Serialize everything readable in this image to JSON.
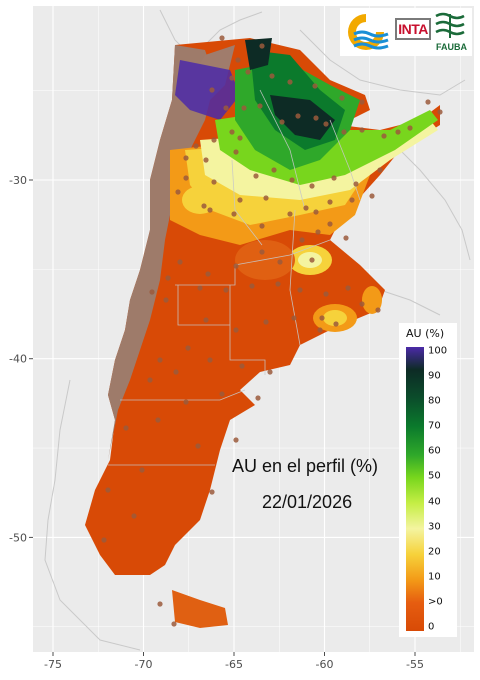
{
  "map": {
    "title": "AU en el perfil (%)",
    "date": "22/01/2026",
    "x_axis": {
      "ticks": [
        {
          "value": -75,
          "label": "-75"
        },
        {
          "value": -70,
          "label": "-70"
        },
        {
          "value": -65,
          "label": "-65"
        },
        {
          "value": -60,
          "label": "-60"
        },
        {
          "value": -55,
          "label": "-55"
        }
      ]
    },
    "y_axis": {
      "ticks": [
        {
          "value": -30,
          "label": "-30"
        },
        {
          "value": -40,
          "label": "-40"
        },
        {
          "value": -50,
          "label": "-50"
        }
      ]
    }
  },
  "legend": {
    "title": "AU (%)",
    "labels": [
      "100",
      "90",
      "80",
      "70",
      "60",
      "50",
      "40",
      "30",
      "20",
      "10",
      ">0",
      "0"
    ]
  },
  "logos": {
    "left_logo": "ministry-logo-icon",
    "inta_text": "INTA",
    "fauba_text": "FAUBA"
  },
  "colors": {
    "background_panel": "#ebebeb",
    "gridline": "#ffffff",
    "dry": "#d84a06",
    "mountain": "#9e7b6a",
    "saturated": "#4b2aa8",
    "very_wet": "#0d2b25",
    "wet": "#0b7a2c",
    "moist": "#78d61d",
    "medium": "#f4f4a0",
    "low": "#f39a17"
  }
}
